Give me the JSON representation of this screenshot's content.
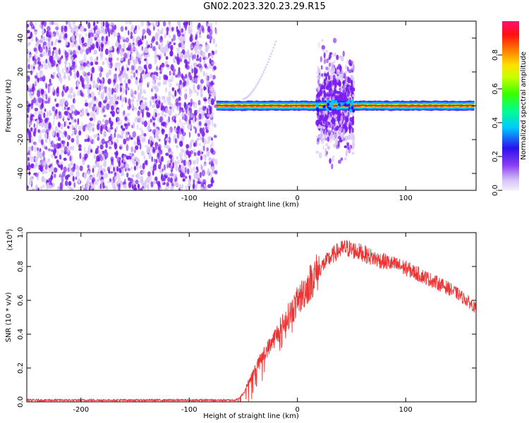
{
  "page_title": "GN02.2023.320.23.29.R15",
  "colors": {
    "spectrogram_dot": "#7a1cf0",
    "spectrogram_light": "#d8c6f7",
    "snr_line": "#ee3333",
    "axis": "#000000"
  },
  "colorbar": {
    "label": "Normalized spectral amplitude",
    "ticks": [
      "0.0",
      "0.2",
      "0.4",
      "0.6",
      "0.8"
    ],
    "tick_values": [
      0.0,
      0.2,
      0.4,
      0.6,
      0.8
    ],
    "range": [
      0.0,
      1.0
    ]
  },
  "chart_data": [
    {
      "type": "heatmap",
      "name_hint": "spectrogram",
      "xlabel": "Height of straight line (km)",
      "ylabel": "Frequency (Hz)",
      "xlim": [
        -250,
        165
      ],
      "ylim": [
        -50,
        50
      ],
      "xticks": [
        -200,
        -100,
        0,
        100
      ],
      "xtick_labels": [
        "-200",
        "-100",
        "0",
        "100"
      ],
      "yticks": [
        -40,
        -20,
        0,
        20,
        40
      ],
      "ytick_labels": [
        "-40",
        "-20",
        "0",
        "20",
        "40"
      ],
      "features": {
        "noise_region_x": [
          -250,
          -75
        ],
        "burst_region_x": [
          18,
          52
        ],
        "burst_freq_range": [
          -42,
          38
        ],
        "carrier_freq": 0,
        "carrier_x": [
          -75,
          165
        ],
        "faint_arc_x": [
          -50,
          -20
        ],
        "faint_arc_freq": [
          4,
          38
        ]
      }
    },
    {
      "type": "line",
      "name_hint": "snr",
      "xlabel": "Height of straight line (km)",
      "ylabel": "SNR (10 * v/v)",
      "y_multiplier_label": "(x10",
      "y_multiplier_exp": "4",
      "xlim": [
        -250,
        165
      ],
      "ylim": [
        0,
        1.0
      ],
      "xticks": [
        -200,
        -100,
        0,
        100
      ],
      "xtick_labels": [
        "-200",
        "-100",
        "0",
        "100"
      ],
      "yticks": [
        0.0,
        0.2,
        0.4,
        0.6,
        0.8,
        1.0
      ],
      "ytick_labels": [
        "0.0",
        "0.2",
        "0.4",
        "0.6",
        "0.8",
        "1.0"
      ],
      "series": [
        {
          "x": [
            -250,
            -200,
            -150,
            -100,
            -70,
            -60,
            -55,
            -50,
            -45,
            -40,
            -35,
            -30,
            -25,
            -20,
            -15,
            -10,
            -5,
            0,
            5,
            10,
            15,
            20,
            25,
            30,
            35,
            40,
            45,
            50,
            60,
            70,
            80,
            90,
            100,
            110,
            120,
            130,
            140,
            150,
            160,
            165
          ],
          "values": [
            0.01,
            0.01,
            0.01,
            0.01,
            0.01,
            0.01,
            0.015,
            0.05,
            0.12,
            0.18,
            0.24,
            0.29,
            0.34,
            0.39,
            0.44,
            0.49,
            0.54,
            0.59,
            0.64,
            0.69,
            0.74,
            0.78,
            0.82,
            0.85,
            0.88,
            0.9,
            0.91,
            0.9,
            0.88,
            0.85,
            0.83,
            0.81,
            0.79,
            0.76,
            0.73,
            0.7,
            0.67,
            0.63,
            0.58,
            0.55
          ]
        }
      ]
    }
  ]
}
